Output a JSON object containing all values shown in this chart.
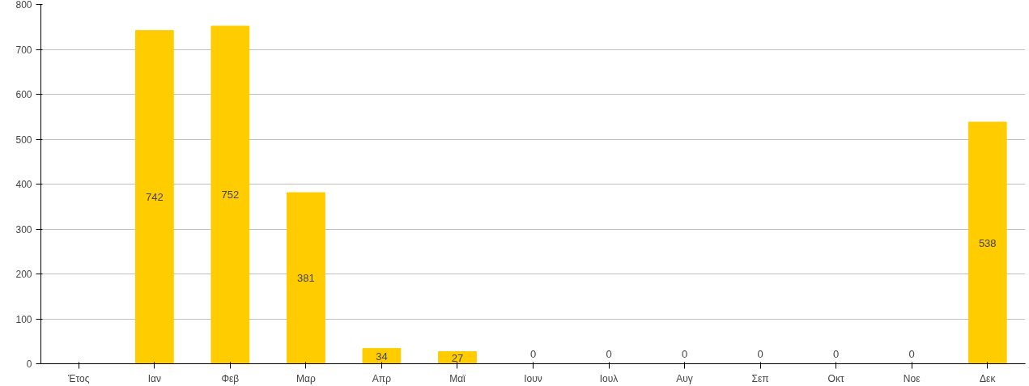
{
  "chart_data": {
    "type": "bar",
    "categories": [
      "Έτος",
      "Ιαν",
      "Φεβ",
      "Μαρ",
      "Απρ",
      "Μαϊ",
      "Ιουν",
      "Ιουλ",
      "Αυγ",
      "Σεπ",
      "Οκτ",
      "Νοε",
      "Δεκ"
    ],
    "values": [
      null,
      742,
      752,
      381,
      34,
      27,
      0,
      0,
      0,
      0,
      0,
      0,
      538
    ],
    "color": "#ffcc00",
    "ylim": [
      0,
      800
    ],
    "yticks": [
      0,
      100,
      200,
      300,
      400,
      500,
      600,
      700,
      800
    ],
    "grid": "y",
    "data_labels": true
  }
}
